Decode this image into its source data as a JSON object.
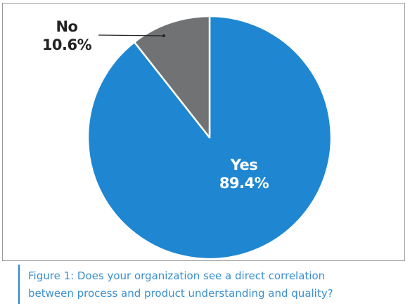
{
  "chart_data": {
    "type": "pie",
    "categories": [
      "Yes",
      "No"
    ],
    "values": [
      89.4,
      10.6
    ],
    "value_labels": [
      "89.4%",
      "10.6%"
    ],
    "colors": [
      "#1f87d1",
      "#717274"
    ],
    "start_angle": "12 o'clock",
    "direction": "clockwise",
    "legend": "none"
  },
  "caption": {
    "line1": "Figure 1: Does your organization see a direct correlation",
    "line2": "between process and product understanding and quality?"
  },
  "colors": {
    "border": "#9a9a9a",
    "caption_accent": "#2f85c8",
    "caption_text": "#3a8fd0",
    "slice_separator": "#ffffff"
  }
}
